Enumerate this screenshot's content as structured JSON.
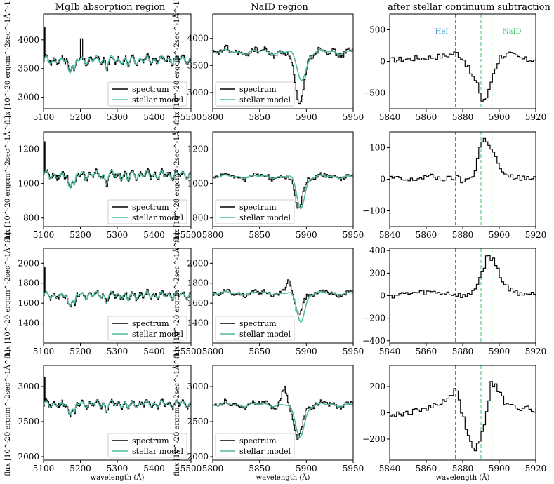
{
  "figure": {
    "column_titles": [
      "MgIb absorption region",
      "NaID region",
      "after stellar continuum subtraction"
    ],
    "ylabel": "flux [10^-20 ergcm^-2sec^-1Å^-1]",
    "xlabel": "wavelength (Å)",
    "legend_labels": [
      "spectrum",
      "stellar model"
    ],
    "annotations": [
      "HeI",
      "NaID"
    ],
    "colors": {
      "spectrum": "#000000",
      "model": "#4fb8a0",
      "hei_line": "#1f8fd0",
      "naid_line": "#52c97a"
    }
  },
  "chart_data": [
    {
      "type": "line",
      "row": 0,
      "col": 0,
      "title": "MgIb absorption region",
      "xlim": [
        5100,
        5500
      ],
      "ylim": [
        2800,
        4450
      ],
      "xticks": [
        5100,
        5200,
        5300,
        5400,
        5500
      ],
      "yticks": [
        3000,
        3500,
        4000
      ],
      "legend": "lower-right",
      "base": 3650,
      "scale": 160,
      "pattern": "mgib",
      "series": [
        {
          "name": "spectrum",
          "values": []
        },
        {
          "name": "stellar model",
          "values": []
        }
      ]
    },
    {
      "type": "line",
      "row": 0,
      "col": 1,
      "title": "NaID region",
      "xlim": [
        5800,
        5950
      ],
      "ylim": [
        2700,
        4450
      ],
      "xticks": [
        5800,
        5850,
        5900,
        5950
      ],
      "yticks": [
        3000,
        3500,
        4000
      ],
      "legend": "lower-left",
      "base": 3750,
      "scale": 80,
      "pattern": "naid",
      "dips": [
        {
          "center": 5892,
          "depth": 970,
          "width": 7,
          "model": 0.52
        }
      ]
    },
    {
      "type": "line",
      "row": 0,
      "col": 2,
      "title": "after stellar continuum subtraction",
      "xlim": [
        5840,
        5920
      ],
      "ylim": [
        -750,
        750
      ],
      "xticks": [
        5840,
        5860,
        5880,
        5900,
        5920
      ],
      "yticks": [
        -500,
        0,
        500
      ],
      "pattern": "resid",
      "points": [
        [
          5840,
          20
        ],
        [
          5850,
          40
        ],
        [
          5860,
          60
        ],
        [
          5870,
          90
        ],
        [
          5876,
          140
        ],
        [
          5880,
          30
        ],
        [
          5884,
          -200
        ],
        [
          5888,
          -400
        ],
        [
          5890,
          -620
        ],
        [
          5893,
          -560
        ],
        [
          5896,
          -200
        ],
        [
          5900,
          80
        ],
        [
          5905,
          120
        ],
        [
          5910,
          60
        ],
        [
          5915,
          20
        ],
        [
          5920,
          40
        ]
      ],
      "annotate": true
    },
    {
      "type": "line",
      "row": 1,
      "col": 0,
      "xlim": [
        5100,
        5500
      ],
      "ylim": [
        750,
        1300
      ],
      "xticks": [
        5100,
        5200,
        5300,
        5400,
        5500
      ],
      "yticks": [
        800,
        1000,
        1200
      ],
      "legend": "lower-right",
      "base": 1050,
      "scale": 55,
      "pattern": "mgib"
    },
    {
      "type": "line",
      "row": 1,
      "col": 1,
      "xlim": [
        5800,
        5950
      ],
      "ylim": [
        750,
        1300
      ],
      "xticks": [
        5800,
        5850,
        5900,
        5950
      ],
      "yticks": [
        800,
        1000,
        1200
      ],
      "legend": "lower-left",
      "base": 1040,
      "scale": 18,
      "pattern": "naid",
      "dips": [
        {
          "center": 5891,
          "depth": 180,
          "width": 6,
          "model": 1.0
        }
      ]
    },
    {
      "type": "line",
      "row": 1,
      "col": 2,
      "xlim": [
        5840,
        5920
      ],
      "ylim": [
        -150,
        150
      ],
      "xticks": [
        5840,
        5860,
        5880,
        5900,
        5920
      ],
      "yticks": [
        -100,
        0,
        100
      ],
      "pattern": "resid",
      "points": [
        [
          5840,
          5
        ],
        [
          5850,
          -5
        ],
        [
          5860,
          10
        ],
        [
          5870,
          0
        ],
        [
          5876,
          5
        ],
        [
          5880,
          -10
        ],
        [
          5886,
          20
        ],
        [
          5889,
          110
        ],
        [
          5892,
          130
        ],
        [
          5895,
          100
        ],
        [
          5898,
          60
        ],
        [
          5902,
          10
        ],
        [
          5910,
          5
        ],
        [
          5920,
          0
        ]
      ]
    },
    {
      "type": "line",
      "row": 2,
      "col": 0,
      "xlim": [
        5100,
        5500
      ],
      "ylim": [
        1200,
        2150
      ],
      "xticks": [
        5100,
        5200,
        5300,
        5400,
        5500
      ],
      "yticks": [
        1400,
        1600,
        1800,
        2000
      ],
      "legend": "lower-right",
      "base": 1680,
      "scale": 80,
      "pattern": "mgib"
    },
    {
      "type": "line",
      "row": 2,
      "col": 1,
      "xlim": [
        5800,
        5950
      ],
      "ylim": [
        1200,
        2150
      ],
      "xticks": [
        5800,
        5850,
        5900,
        5950
      ],
      "yticks": [
        1400,
        1600,
        1800,
        2000
      ],
      "legend": "lower-left",
      "base": 1700,
      "scale": 30,
      "pattern": "naid",
      "dips": [
        {
          "center": 5891,
          "depth": 200,
          "width": 6,
          "model": 1.4
        }
      ],
      "bump": {
        "center": 5880,
        "height": 120
      }
    },
    {
      "type": "line",
      "row": 2,
      "col": 2,
      "xlim": [
        5840,
        5920
      ],
      "ylim": [
        -420,
        420
      ],
      "xticks": [
        5840,
        5860,
        5880,
        5900,
        5920
      ],
      "yticks": [
        -400,
        -200,
        0,
        200,
        400
      ],
      "pattern": "resid",
      "points": [
        [
          5840,
          0
        ],
        [
          5850,
          20
        ],
        [
          5860,
          30
        ],
        [
          5870,
          25
        ],
        [
          5876,
          10
        ],
        [
          5882,
          -10
        ],
        [
          5886,
          60
        ],
        [
          5890,
          200
        ],
        [
          5893,
          360
        ],
        [
          5896,
          320
        ],
        [
          5898,
          260
        ],
        [
          5902,
          100
        ],
        [
          5908,
          30
        ],
        [
          5920,
          10
        ]
      ]
    },
    {
      "type": "line",
      "row": 3,
      "col": 0,
      "xlim": [
        5100,
        5500
      ],
      "ylim": [
        1950,
        3300
      ],
      "xticks": [
        5100,
        5200,
        5300,
        5400,
        5500
      ],
      "yticks": [
        2000,
        2500,
        3000
      ],
      "legend": "lower-right",
      "base": 2750,
      "scale": 110,
      "pattern": "mgib"
    },
    {
      "type": "line",
      "row": 3,
      "col": 1,
      "xlim": [
        5800,
        5950
      ],
      "ylim": [
        1950,
        3300
      ],
      "xticks": [
        5800,
        5850,
        5900,
        5950
      ],
      "yticks": [
        2000,
        2500,
        3000
      ],
      "legend": "lower-left",
      "base": 2740,
      "scale": 50,
      "pattern": "naid",
      "dips": [
        {
          "center": 5890,
          "depth": 470,
          "width": 7,
          "model": 0.95
        }
      ],
      "bump": {
        "center": 5876,
        "height": 250
      }
    },
    {
      "type": "line",
      "row": 3,
      "col": 2,
      "xlim": [
        5840,
        5920
      ],
      "ylim": [
        -360,
        360
      ],
      "xticks": [
        5840,
        5860,
        5880,
        5900,
        5920
      ],
      "yticks": [
        -200,
        0,
        200
      ],
      "pattern": "resid",
      "points": [
        [
          5840,
          -20
        ],
        [
          5850,
          0
        ],
        [
          5860,
          40
        ],
        [
          5866,
          60
        ],
        [
          5872,
          120
        ],
        [
          5876,
          180
        ],
        [
          5879,
          0
        ],
        [
          5882,
          -150
        ],
        [
          5886,
          -280
        ],
        [
          5889,
          -220
        ],
        [
          5892,
          -40
        ],
        [
          5895,
          220
        ],
        [
          5898,
          200
        ],
        [
          5903,
          60
        ],
        [
          5910,
          40
        ],
        [
          5920,
          20
        ]
      ]
    }
  ]
}
